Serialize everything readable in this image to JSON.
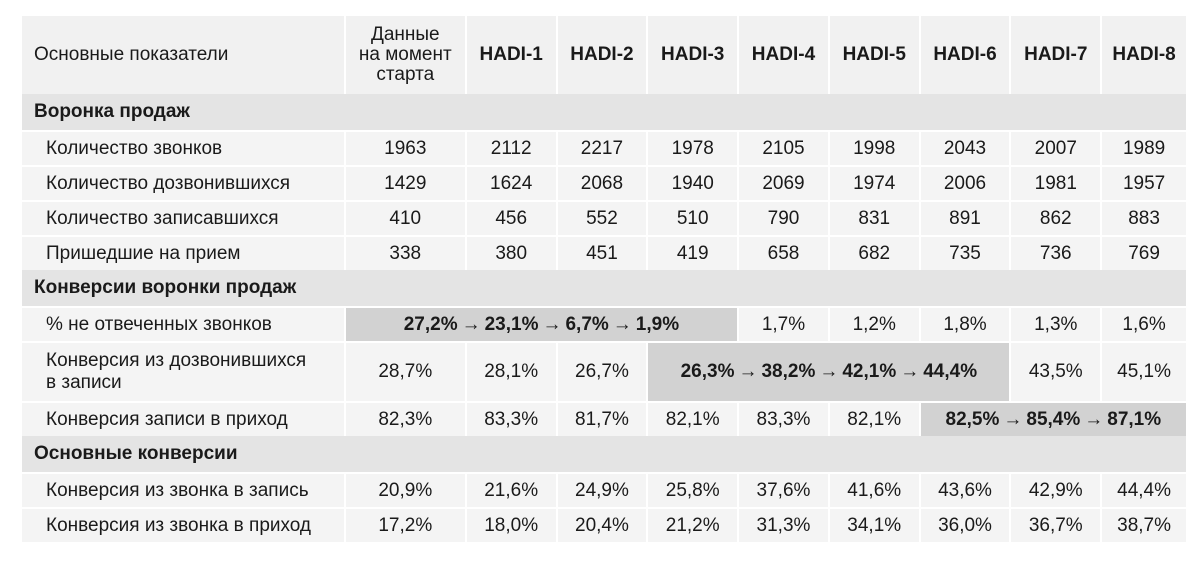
{
  "header": {
    "label": "Основные показатели",
    "start_lines": [
      "Данные",
      "на момент",
      "старта"
    ],
    "columns": [
      "HADI-1",
      "HADI-2",
      "HADI-3",
      "HADI-4",
      "HADI-5",
      "HADI-6",
      "HADI-7",
      "HADI-8"
    ]
  },
  "sections": [
    {
      "title": "Воронка продаж",
      "rows": [
        {
          "label": "Количество звонков",
          "values": [
            "1963",
            "2112",
            "2217",
            "1978",
            "2105",
            "1998",
            "2043",
            "2007",
            "1989"
          ]
        },
        {
          "label": "Количество дозвонившихся",
          "values": [
            "1429",
            "1624",
            "2068",
            "1940",
            "2069",
            "1974",
            "2006",
            "1981",
            "1957"
          ]
        },
        {
          "label": "Количество записавшихся",
          "values": [
            "410",
            "456",
            "552",
            "510",
            "790",
            "831",
            "891",
            "862",
            "883"
          ]
        },
        {
          "label": "Пришедшие на прием",
          "values": [
            "338",
            "380",
            "451",
            "419",
            "658",
            "682",
            "735",
            "736",
            "769"
          ]
        }
      ]
    },
    {
      "title": "Конверсии воронки продаж",
      "rows": [
        {
          "label": "% не отвеченных звонков",
          "values": [
            "27,2%",
            "23,1%",
            "6,7%",
            "1,9%",
            "1,7%",
            "1,2%",
            "1,8%",
            "1,3%",
            "1,6%"
          ]
        },
        {
          "label_lines": [
            "Конверсия из дозвонившихся",
            "в записи"
          ],
          "values": [
            "28,7%",
            "28,1%",
            "26,7%",
            "26,3%",
            "38,2%",
            "42,1%",
            "44,4%",
            "43,5%",
            "45,1%"
          ]
        },
        {
          "label": "Конверсия записи в приход",
          "values": [
            "82,3%",
            "83,3%",
            "81,7%",
            "82,1%",
            "83,3%",
            "82,1%",
            "82,5%",
            "85,4%",
            "87,1%"
          ]
        }
      ]
    },
    {
      "title": "Основные конверсии",
      "rows": [
        {
          "label": "Конверсия из звонка в запись",
          "values": [
            "20,9%",
            "21,6%",
            "24,9%",
            "25,8%",
            "37,6%",
            "41,6%",
            "43,6%",
            "42,9%",
            "44,4%"
          ]
        },
        {
          "label": "Конверсия из звонка в приход",
          "values": [
            "17,2%",
            "18,0%",
            "20,4%",
            "21,2%",
            "31,3%",
            "34,1%",
            "36,0%",
            "36,7%",
            "38,7%"
          ]
        }
      ]
    }
  ],
  "arrow": "→"
}
